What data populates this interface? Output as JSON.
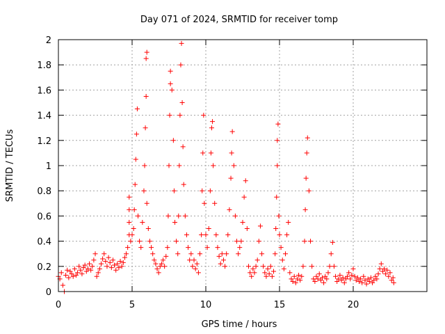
{
  "chart_data": {
    "type": "scatter",
    "title": "Day 071 of 2024, SRMTID for receiver tomp",
    "xlabel": "GPS time / hours",
    "ylabel": "SRMTID / TECUs",
    "xlim": [
      0,
      25
    ],
    "ylim": [
      0,
      2
    ],
    "xticks": [
      0,
      5,
      10,
      15,
      20
    ],
    "xtick_labels": [
      "0",
      "5",
      "10",
      "15",
      "20"
    ],
    "yticks": [
      0,
      0.2,
      0.4,
      0.6,
      0.8,
      1,
      1.2,
      1.4,
      1.6,
      1.8,
      2
    ],
    "ytick_labels": [
      "0",
      "0.2",
      "0.4",
      "0.6",
      "0.8",
      "1",
      "1.2",
      "1.4",
      "1.6",
      "1.8",
      "2"
    ],
    "grid": true,
    "marker": "+",
    "series": [
      {
        "name": "SRMTID",
        "color": "#ff0000",
        "points": [
          [
            0.0,
            0.12
          ],
          [
            0.1,
            0.1
          ],
          [
            0.2,
            0.15
          ],
          [
            0.3,
            0.05
          ],
          [
            0.4,
            0.0
          ],
          [
            0.5,
            0.13
          ],
          [
            0.6,
            0.17
          ],
          [
            0.7,
            0.11
          ],
          [
            0.8,
            0.16
          ],
          [
            0.9,
            0.14
          ],
          [
            1.0,
            0.12
          ],
          [
            1.1,
            0.18
          ],
          [
            1.2,
            0.13
          ],
          [
            1.3,
            0.15
          ],
          [
            1.4,
            0.2
          ],
          [
            1.5,
            0.17
          ],
          [
            1.6,
            0.14
          ],
          [
            1.7,
            0.19
          ],
          [
            1.8,
            0.21
          ],
          [
            1.9,
            0.16
          ],
          [
            2.0,
            0.18
          ],
          [
            2.1,
            0.22
          ],
          [
            2.2,
            0.17
          ],
          [
            2.3,
            0.2
          ],
          [
            2.4,
            0.25
          ],
          [
            2.5,
            0.3
          ],
          [
            2.6,
            0.12
          ],
          [
            2.7,
            0.15
          ],
          [
            2.8,
            0.18
          ],
          [
            2.9,
            0.22
          ],
          [
            3.0,
            0.26
          ],
          [
            3.1,
            0.3
          ],
          [
            3.2,
            0.24
          ],
          [
            3.3,
            0.2
          ],
          [
            3.4,
            0.27
          ],
          [
            3.5,
            0.23
          ],
          [
            3.6,
            0.19
          ],
          [
            3.7,
            0.25
          ],
          [
            3.8,
            0.21
          ],
          [
            3.9,
            0.17
          ],
          [
            4.0,
            0.22
          ],
          [
            4.1,
            0.19
          ],
          [
            4.2,
            0.24
          ],
          [
            4.3,
            0.2
          ],
          [
            4.4,
            0.23
          ],
          [
            4.5,
            0.27
          ],
          [
            4.6,
            0.3
          ],
          [
            4.7,
            0.35
          ],
          [
            4.8,
            0.45
          ],
          [
            4.8,
            0.55
          ],
          [
            4.8,
            0.65
          ],
          [
            4.8,
            0.75
          ],
          [
            4.9,
            0.4
          ],
          [
            5.0,
            0.45
          ],
          [
            5.1,
            0.5
          ],
          [
            5.15,
            0.65
          ],
          [
            5.2,
            0.85
          ],
          [
            5.25,
            1.05
          ],
          [
            5.3,
            1.25
          ],
          [
            5.35,
            1.45
          ],
          [
            5.4,
            0.6
          ],
          [
            5.5,
            0.4
          ],
          [
            5.6,
            0.35
          ],
          [
            5.7,
            0.55
          ],
          [
            5.8,
            0.8
          ],
          [
            5.85,
            1.0
          ],
          [
            5.9,
            1.3
          ],
          [
            5.95,
            1.55
          ],
          [
            5.95,
            1.85
          ],
          [
            6.0,
            1.9
          ],
          [
            6.0,
            0.7
          ],
          [
            6.1,
            0.5
          ],
          [
            6.2,
            0.4
          ],
          [
            6.3,
            0.35
          ],
          [
            6.4,
            0.3
          ],
          [
            6.5,
            0.25
          ],
          [
            6.6,
            0.22
          ],
          [
            6.7,
            0.18
          ],
          [
            6.8,
            0.15
          ],
          [
            6.9,
            0.2
          ],
          [
            7.0,
            0.22
          ],
          [
            7.1,
            0.25
          ],
          [
            7.2,
            0.2
          ],
          [
            7.3,
            0.28
          ],
          [
            7.4,
            0.35
          ],
          [
            7.45,
            0.6
          ],
          [
            7.5,
            1.0
          ],
          [
            7.55,
            1.4
          ],
          [
            7.6,
            1.65
          ],
          [
            7.6,
            1.75
          ],
          [
            7.7,
            1.6
          ],
          [
            7.8,
            1.2
          ],
          [
            7.85,
            0.8
          ],
          [
            7.9,
            0.55
          ],
          [
            8.0,
            0.4
          ],
          [
            8.1,
            0.3
          ],
          [
            8.15,
            0.6
          ],
          [
            8.2,
            1.0
          ],
          [
            8.25,
            1.4
          ],
          [
            8.3,
            1.8
          ],
          [
            8.35,
            1.97
          ],
          [
            8.4,
            1.5
          ],
          [
            8.45,
            1.15
          ],
          [
            8.5,
            0.85
          ],
          [
            8.6,
            0.6
          ],
          [
            8.7,
            0.45
          ],
          [
            8.8,
            0.35
          ],
          [
            8.9,
            0.25
          ],
          [
            9.0,
            0.3
          ],
          [
            9.1,
            0.2
          ],
          [
            9.2,
            0.25
          ],
          [
            9.3,
            0.18
          ],
          [
            9.4,
            0.22
          ],
          [
            9.5,
            0.15
          ],
          [
            9.6,
            0.3
          ],
          [
            9.7,
            0.45
          ],
          [
            9.75,
            0.8
          ],
          [
            9.8,
            1.1
          ],
          [
            9.85,
            1.4
          ],
          [
            9.9,
            0.7
          ],
          [
            10.0,
            0.45
          ],
          [
            10.1,
            0.35
          ],
          [
            10.2,
            0.5
          ],
          [
            10.3,
            0.8
          ],
          [
            10.35,
            1.1
          ],
          [
            10.4,
            1.3
          ],
          [
            10.45,
            1.35
          ],
          [
            10.5,
            1.0
          ],
          [
            10.6,
            0.7
          ],
          [
            10.7,
            0.45
          ],
          [
            10.8,
            0.35
          ],
          [
            10.9,
            0.28
          ],
          [
            11.0,
            0.22
          ],
          [
            11.1,
            0.3
          ],
          [
            11.2,
            0.25
          ],
          [
            11.3,
            0.2
          ],
          [
            11.4,
            0.3
          ],
          [
            11.5,
            0.45
          ],
          [
            11.6,
            0.65
          ],
          [
            11.7,
            0.9
          ],
          [
            11.75,
            1.1
          ],
          [
            11.8,
            1.27
          ],
          [
            11.9,
            1.0
          ],
          [
            12.0,
            0.6
          ],
          [
            12.1,
            0.4
          ],
          [
            12.2,
            0.3
          ],
          [
            12.3,
            0.35
          ],
          [
            12.4,
            0.4
          ],
          [
            12.5,
            0.55
          ],
          [
            12.6,
            0.75
          ],
          [
            12.7,
            0.88
          ],
          [
            12.8,
            0.5
          ],
          [
            12.9,
            0.2
          ],
          [
            13.0,
            0.15
          ],
          [
            13.1,
            0.12
          ],
          [
            13.2,
            0.18
          ],
          [
            13.3,
            0.15
          ],
          [
            13.4,
            0.2
          ],
          [
            13.5,
            0.25
          ],
          [
            13.6,
            0.4
          ],
          [
            13.7,
            0.52
          ],
          [
            13.8,
            0.3
          ],
          [
            13.9,
            0.2
          ],
          [
            14.0,
            0.15
          ],
          [
            14.1,
            0.12
          ],
          [
            14.2,
            0.18
          ],
          [
            14.3,
            0.14
          ],
          [
            14.4,
            0.2
          ],
          [
            14.5,
            0.12
          ],
          [
            14.6,
            0.16
          ],
          [
            14.7,
            0.3
          ],
          [
            14.75,
            0.5
          ],
          [
            14.8,
            0.75
          ],
          [
            14.85,
            1.0
          ],
          [
            14.85,
            1.2
          ],
          [
            14.9,
            1.33
          ],
          [
            14.95,
            0.6
          ],
          [
            15.0,
            0.45
          ],
          [
            15.1,
            0.35
          ],
          [
            15.2,
            0.25
          ],
          [
            15.3,
            0.18
          ],
          [
            15.4,
            0.3
          ],
          [
            15.5,
            0.45
          ],
          [
            15.6,
            0.55
          ],
          [
            15.7,
            0.15
          ],
          [
            15.8,
            0.1
          ],
          [
            15.9,
            0.08
          ],
          [
            16.0,
            0.12
          ],
          [
            16.1,
            0.07
          ],
          [
            16.2,
            0.1
          ],
          [
            16.3,
            0.13
          ],
          [
            16.4,
            0.09
          ],
          [
            16.5,
            0.12
          ],
          [
            16.6,
            0.2
          ],
          [
            16.7,
            0.4
          ],
          [
            16.75,
            0.65
          ],
          [
            16.8,
            0.9
          ],
          [
            16.85,
            1.1
          ],
          [
            16.9,
            1.22
          ],
          [
            17.0,
            0.8
          ],
          [
            17.1,
            0.4
          ],
          [
            17.2,
            0.2
          ],
          [
            17.3,
            0.1
          ],
          [
            17.4,
            0.08
          ],
          [
            17.5,
            0.12
          ],
          [
            17.6,
            0.1
          ],
          [
            17.7,
            0.14
          ],
          [
            17.8,
            0.09
          ],
          [
            17.9,
            0.11
          ],
          [
            18.0,
            0.07
          ],
          [
            18.1,
            0.12
          ],
          [
            18.2,
            0.1
          ],
          [
            18.3,
            0.15
          ],
          [
            18.4,
            0.2
          ],
          [
            18.5,
            0.3
          ],
          [
            18.6,
            0.39
          ],
          [
            18.7,
            0.2
          ],
          [
            18.8,
            0.12
          ],
          [
            18.9,
            0.08
          ],
          [
            19.0,
            0.1
          ],
          [
            19.1,
            0.13
          ],
          [
            19.2,
            0.09
          ],
          [
            19.3,
            0.11
          ],
          [
            19.4,
            0.07
          ],
          [
            19.5,
            0.1
          ],
          [
            19.6,
            0.12
          ],
          [
            19.7,
            0.15
          ],
          [
            19.8,
            0.1
          ],
          [
            19.9,
            0.13
          ],
          [
            20.0,
            0.18
          ],
          [
            20.1,
            0.12
          ],
          [
            20.2,
            0.09
          ],
          [
            20.3,
            0.11
          ],
          [
            20.4,
            0.08
          ],
          [
            20.5,
            0.1
          ],
          [
            20.6,
            0.07
          ],
          [
            20.7,
            0.12
          ],
          [
            20.8,
            0.09
          ],
          [
            20.9,
            0.06
          ],
          [
            21.0,
            0.1
          ],
          [
            21.1,
            0.08
          ],
          [
            21.2,
            0.11
          ],
          [
            21.3,
            0.07
          ],
          [
            21.4,
            0.09
          ],
          [
            21.5,
            0.12
          ],
          [
            21.6,
            0.1
          ],
          [
            21.7,
            0.14
          ],
          [
            21.8,
            0.18
          ],
          [
            21.9,
            0.22
          ],
          [
            22.0,
            0.16
          ],
          [
            22.1,
            0.18
          ],
          [
            22.2,
            0.14
          ],
          [
            22.3,
            0.17
          ],
          [
            22.4,
            0.12
          ],
          [
            22.5,
            0.15
          ],
          [
            22.6,
            0.09
          ],
          [
            22.7,
            0.11
          ],
          [
            22.75,
            0.07
          ]
        ]
      }
    ]
  }
}
